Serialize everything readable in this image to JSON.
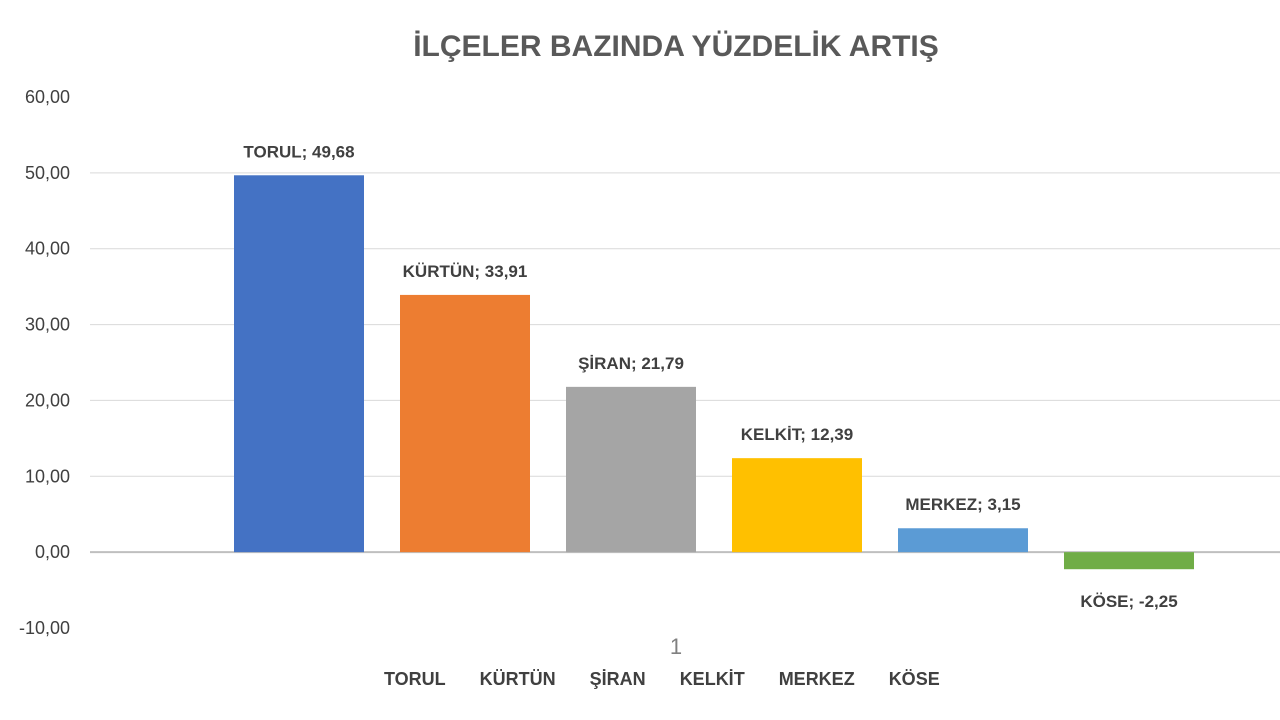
{
  "chart_data": {
    "type": "bar",
    "title": "İLÇELER BAZINDA YÜZDELİK ARTIŞ",
    "xlabel": "",
    "ylabel": "",
    "x_category_label": "1",
    "ylim": [
      -10,
      60
    ],
    "yticks": [
      60,
      50,
      40,
      30,
      20,
      10,
      0,
      -10
    ],
    "ytick_labels": [
      "60,00",
      "50,00",
      "40,00",
      "30,00",
      "20,00",
      "10,00",
      "0,00",
      "-10,00"
    ],
    "grid": true,
    "legend_position": "bottom",
    "series": [
      {
        "name": "TORUL",
        "value": 49.68,
        "label": "TORUL; 49,68",
        "color": "#4472c4"
      },
      {
        "name": "KÜRTÜN",
        "value": 33.91,
        "label": "KÜRTÜN; 33,91",
        "color": "#ed7d31"
      },
      {
        "name": "ŞİRAN",
        "value": 21.79,
        "label": "ŞİRAN; 21,79",
        "color": "#a5a5a5"
      },
      {
        "name": "KELKİT",
        "value": 12.39,
        "label": "KELKİT; 12,39",
        "color": "#ffc000"
      },
      {
        "name": "MERKEZ",
        "value": 3.15,
        "label": "MERKEZ; 3,15",
        "color": "#5b9bd5"
      },
      {
        "name": "KÖSE",
        "value": -2.25,
        "label": "KÖSE; -2,25",
        "color": "#70ad47"
      }
    ]
  }
}
